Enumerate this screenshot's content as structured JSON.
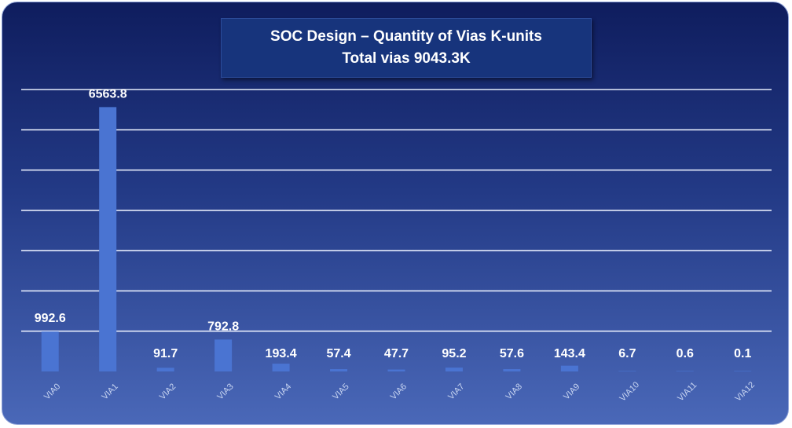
{
  "chart_data": {
    "type": "bar",
    "title": "SOC Design – Quantity of Vias K-units",
    "subtitle": "Total vias 9043.3K",
    "categories": [
      "VIA0",
      "VIA1",
      "VIA2",
      "VIA3",
      "VIA4",
      "VIA5",
      "VIA6",
      "VIA7",
      "VIA8",
      "VIA9",
      "VIA10",
      "VIA11",
      "VIA12"
    ],
    "values": [
      992.6,
      6563.8,
      91.7,
      792.8,
      193.4,
      57.4,
      47.7,
      95.2,
      57.6,
      143.4,
      6.7,
      0.6,
      0.1
    ],
    "value_labels": [
      "992.6",
      "6563.8",
      "91.7",
      "792.8",
      "193.4",
      "57.4",
      "47.7",
      "95.2",
      "57.6",
      "143.4",
      "6.7",
      "0.6",
      "0.1"
    ],
    "ylim": [
      0,
      7000
    ],
    "grid": true,
    "bar_color": "#4a74d2",
    "gridline_color": "#e6ecfb"
  }
}
